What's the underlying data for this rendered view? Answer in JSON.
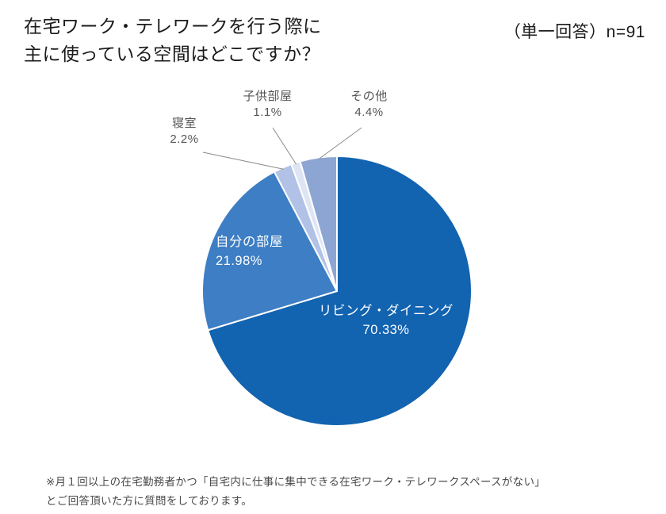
{
  "header": {
    "title_line1": "在宅ワーク・テレワークを行う際に",
    "title_line2": "主に使っている空間はどこですか？",
    "answer_note": "（単一回答）n=91"
  },
  "chart_data": {
    "type": "pie",
    "title": "在宅ワーク・テレワークを行う際に主に使っている空間はどこですか？",
    "sample_note": "（単一回答）n=91",
    "n": 91,
    "start_angle_deg": 0,
    "direction": "clockwise",
    "slices": [
      {
        "label": "リビング・ダイニング",
        "value": 70.33,
        "display": "70.33%",
        "color": "#1263b0",
        "label_position": "inside"
      },
      {
        "label": "自分の部屋",
        "value": 21.98,
        "display": "21.98%",
        "color": "#3d7ec4",
        "label_position": "inside"
      },
      {
        "label": "寝室",
        "value": 2.2,
        "display": "2.2%",
        "color": "#b1c2e6",
        "label_position": "outside"
      },
      {
        "label": "子供部屋",
        "value": 1.1,
        "display": "1.1%",
        "color": "#dde5f5",
        "label_position": "outside"
      },
      {
        "label": "その他",
        "value": 4.4,
        "display": "4.4%",
        "color": "#8da5d2",
        "label_position": "outside"
      }
    ]
  },
  "footnote": {
    "line1": "※月１回以上の在宅勤務者かつ「自宅内に仕事に集中できる在宅ワーク・テレワークスペースがない」",
    "line2": "とご回答頂いた方に質問をしております。"
  }
}
